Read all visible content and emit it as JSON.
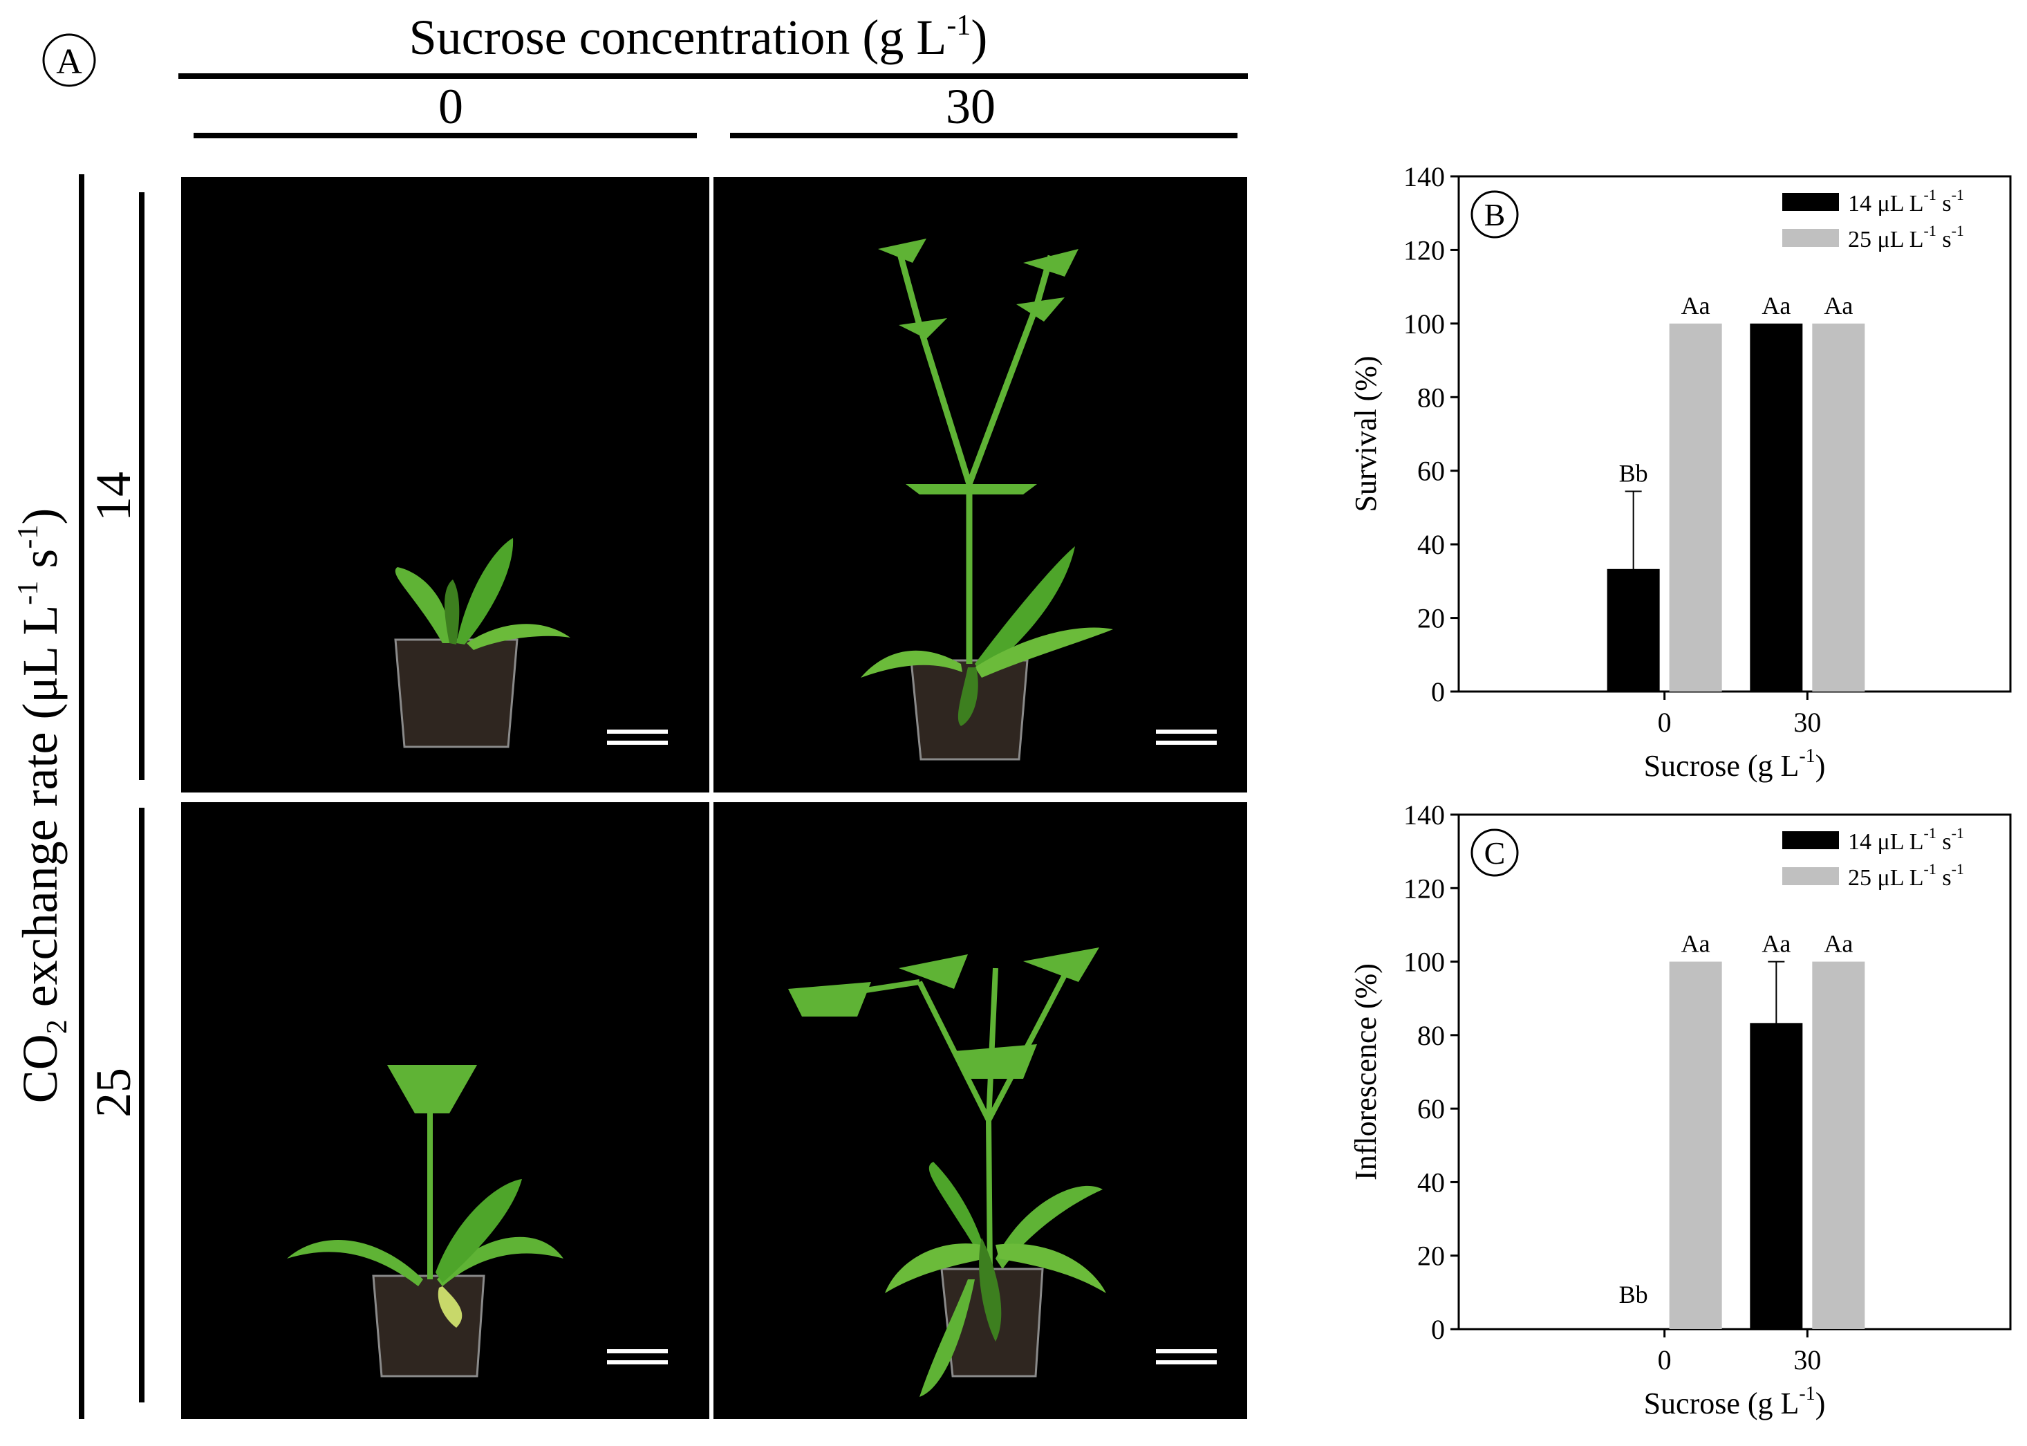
{
  "panel_a": {
    "label": "A",
    "sucrose_header": "Sucrose concentration (g L",
    "sucrose_header_sup": "-1",
    "sucrose_header_close": ")",
    "col_labels": [
      "0",
      "30"
    ],
    "co2_label_a": "CO",
    "co2_label_sub": "2",
    "co2_label_b": " exchange rate (μL L",
    "co2_label_sup1": "-1",
    "co2_label_c": " s",
    "co2_label_sup2": "-1",
    "co2_label_d": ")",
    "row_labels": [
      "14",
      "25"
    ],
    "photo_bg": "#000000",
    "plant_color": "#5fb335",
    "plant_dark": "#3d7f1f",
    "pot_color": "#3a2e25"
  },
  "chart_data": [
    {
      "type": "bar",
      "panel_label": "B",
      "categories": [
        "0",
        "30"
      ],
      "series": [
        {
          "name": "14 μL L-1 s-1",
          "values": [
            33.3,
            100
          ],
          "errors": [
            21.1,
            0
          ],
          "letters": [
            "Bb",
            "Aa"
          ],
          "color": "#000000"
        },
        {
          "name": "25 μL L-1 s-1",
          "values": [
            100,
            100
          ],
          "errors": [
            0,
            0
          ],
          "letters": [
            "Aa",
            "Aa"
          ],
          "color": "#c0c0c0"
        }
      ],
      "legend": [
        {
          "text": "14 μL L",
          "sup1": "-1",
          "mid": " s",
          "sup2": "-1"
        },
        {
          "text": "25 μL L",
          "sup1": "-1",
          "mid": " s",
          "sup2": "-1"
        }
      ],
      "ylabel": "Survival (%)",
      "xlabel": "Sucrose (g L",
      "xlabel_sup": "-1",
      "xlabel_close": ")",
      "ylim": [
        0,
        140
      ],
      "yticks": [
        0,
        20,
        40,
        60,
        80,
        100,
        120,
        140
      ],
      "legend_position": "top-right",
      "grid": false
    },
    {
      "type": "bar",
      "panel_label": "C",
      "categories": [
        "0",
        "30"
      ],
      "series": [
        {
          "name": "14 μL L-1 s-1",
          "values": [
            0,
            83.3
          ],
          "errors": [
            0,
            16.7
          ],
          "letters": [
            "Bb",
            "Aa"
          ],
          "color": "#000000"
        },
        {
          "name": "25 μL L-1 s-1",
          "values": [
            100,
            100
          ],
          "errors": [
            0,
            0
          ],
          "letters": [
            "Aa",
            "Aa"
          ],
          "color": "#c0c0c0"
        }
      ],
      "legend": [
        {
          "text": "14 μL L",
          "sup1": "-1",
          "mid": " s",
          "sup2": "-1"
        },
        {
          "text": "25 μL L",
          "sup1": "-1",
          "mid": " s",
          "sup2": "-1"
        }
      ],
      "ylabel": "Inflorescence (%)",
      "xlabel": "Sucrose (g L",
      "xlabel_sup": "-1",
      "xlabel_close": ")",
      "ylim": [
        0,
        140
      ],
      "yticks": [
        0,
        20,
        40,
        60,
        80,
        100,
        120,
        140
      ],
      "legend_position": "top-right",
      "grid": false
    }
  ]
}
